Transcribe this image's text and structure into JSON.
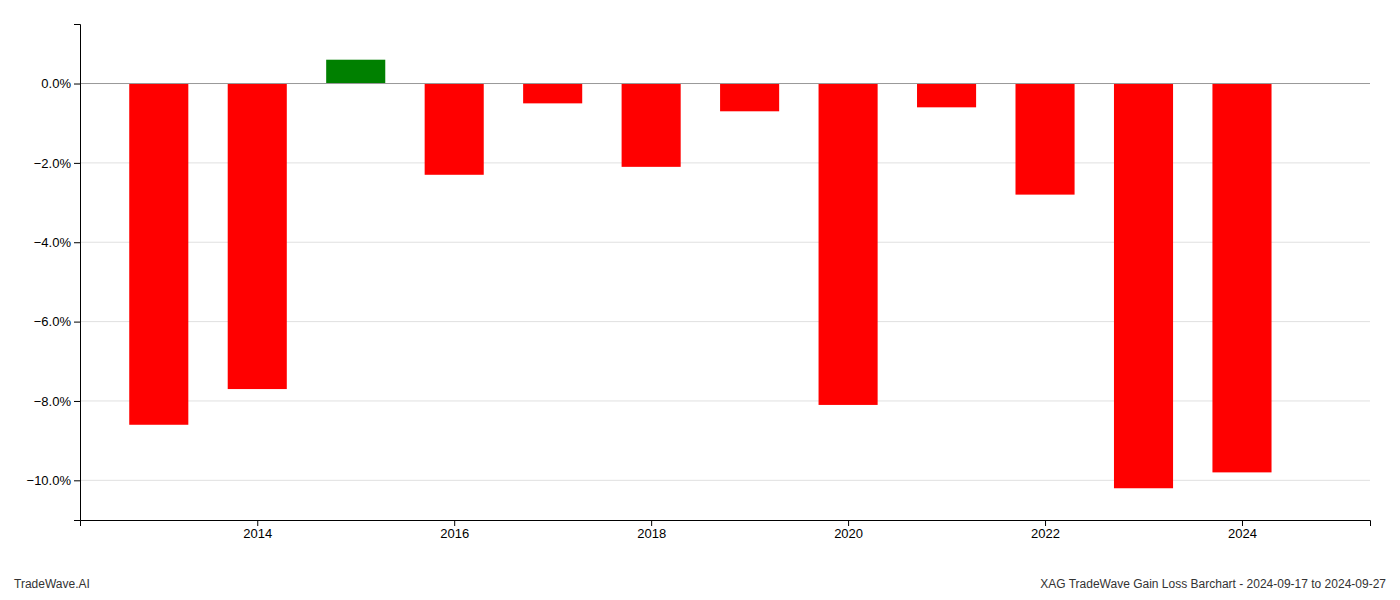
{
  "chart_data": {
    "type": "bar",
    "x": [
      2013,
      2014,
      2015,
      2016,
      2017,
      2018,
      2019,
      2020,
      2021,
      2022,
      2023,
      2024
    ],
    "values": [
      -8.6,
      -7.7,
      0.6,
      -2.3,
      -0.5,
      -2.1,
      -0.7,
      -8.1,
      -0.6,
      -2.8,
      -10.2,
      -9.8
    ],
    "colors": [
      "#ff0000",
      "#ff0000",
      "#008000",
      "#ff0000",
      "#ff0000",
      "#ff0000",
      "#ff0000",
      "#ff0000",
      "#ff0000",
      "#ff0000",
      "#ff0000",
      "#ff0000"
    ],
    "xlim": [
      2012.2,
      2025.3
    ],
    "xticks": [
      2014,
      2016,
      2018,
      2020,
      2022,
      2024
    ],
    "ylim": [
      -11.0,
      1.5
    ],
    "yticks": [
      {
        "value": 0.0,
        "label": "0.0%"
      },
      {
        "value": -2.0,
        "label": "−2.0%"
      },
      {
        "value": -4.0,
        "label": "−4.0%"
      },
      {
        "value": -6.0,
        "label": "−6.0%"
      },
      {
        "value": -8.0,
        "label": "−8.0%"
      },
      {
        "value": -10.0,
        "label": "−10.0%"
      }
    ],
    "grid": true,
    "annotations": [
      "TradeWave.AI",
      "XAG TradeWave Gain Loss Barchart - 2024-09-17 to 2024-09-27"
    ]
  }
}
